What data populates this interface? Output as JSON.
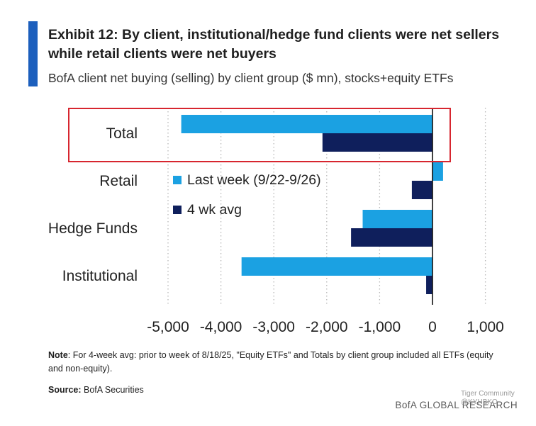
{
  "header": {
    "title": "Exhibit 12: By client, institutional/hedge fund clients were net sellers while retail clients were net buyers",
    "subtitle": "BofA client net buying (selling) by client group ($ mn), stocks+equity ETFs"
  },
  "chart_data": {
    "type": "bar",
    "orientation": "horizontal",
    "categories": [
      "Total",
      "Retail",
      "Hedge Funds",
      "Institutional"
    ],
    "series": [
      {
        "name": "Last week (9/22-9/26)",
        "color": "#1ba1e2",
        "values": [
          -4750,
          200,
          -1320,
          -3610
        ]
      },
      {
        "name": "4 wk avg",
        "color": "#0f1f5c",
        "values": [
          -2080,
          -390,
          -1540,
          -120
        ]
      }
    ],
    "xlim": [
      -5000,
      1000
    ],
    "xticks": [
      -5000,
      -4000,
      -3000,
      -2000,
      -1000,
      0,
      1000
    ],
    "xtick_labels": [
      "-5,000",
      "-4,000",
      "-3,000",
      "-2,000",
      "-1,000",
      "0",
      "1,000"
    ],
    "grid": "vertical dotted",
    "legend_placement": "upper-left inside plot",
    "highlight": {
      "category": "Total",
      "color": "#d7262f"
    }
  },
  "note": {
    "label": "Note",
    "text": ": For 4-week avg: prior to week of 8/18/25, \"Equity ETFs\" and Totals by client group included all ETFs (equity and non-equity)."
  },
  "source": {
    "label": "Source:",
    "text": " BofA Securities"
  },
  "footer": "BofA GLOBAL RESEARCH",
  "watermark": {
    "line1": "Tiger Community",
    "line2": "@KYHBKO"
  }
}
